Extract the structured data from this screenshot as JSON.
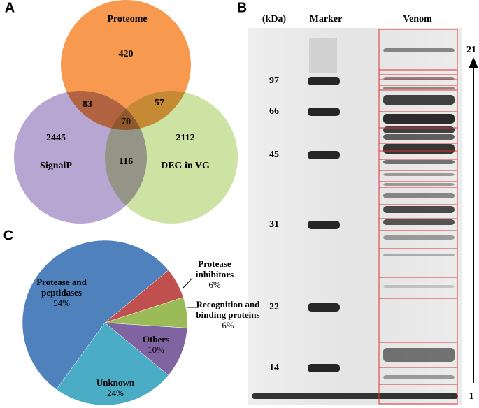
{
  "venn": {
    "panel": "A",
    "sets": [
      "Proteome",
      "SignalP",
      "DEG in VG"
    ],
    "counts": {
      "proteome_only": 420,
      "signalp_only": 2445,
      "deg_only": 2112,
      "proteome_signalp": 83,
      "proteome_deg": 57,
      "all": 70,
      "signalp_deg": 116
    }
  },
  "gel": {
    "panel": "B",
    "unit": "(kDa)",
    "lanes": [
      "Marker",
      "Venom"
    ],
    "markers": [
      97,
      66,
      45,
      31,
      22,
      14
    ],
    "band_range": [
      1,
      21
    ]
  },
  "chart_data": {
    "type": "pie",
    "panel": "C",
    "categories": [
      "Protease and peptidases",
      "Protease inhibitors",
      "Recognition and binding proteins",
      "Others",
      "Unknown"
    ],
    "values": [
      54,
      6,
      6,
      10,
      24
    ],
    "value_labels": [
      "54%",
      "6%",
      "6%",
      "10%",
      "24%"
    ],
    "colors": [
      "#4f81bd",
      "#c0504d",
      "#9bbb59",
      "#8064a2",
      "#4bacc6"
    ]
  }
}
